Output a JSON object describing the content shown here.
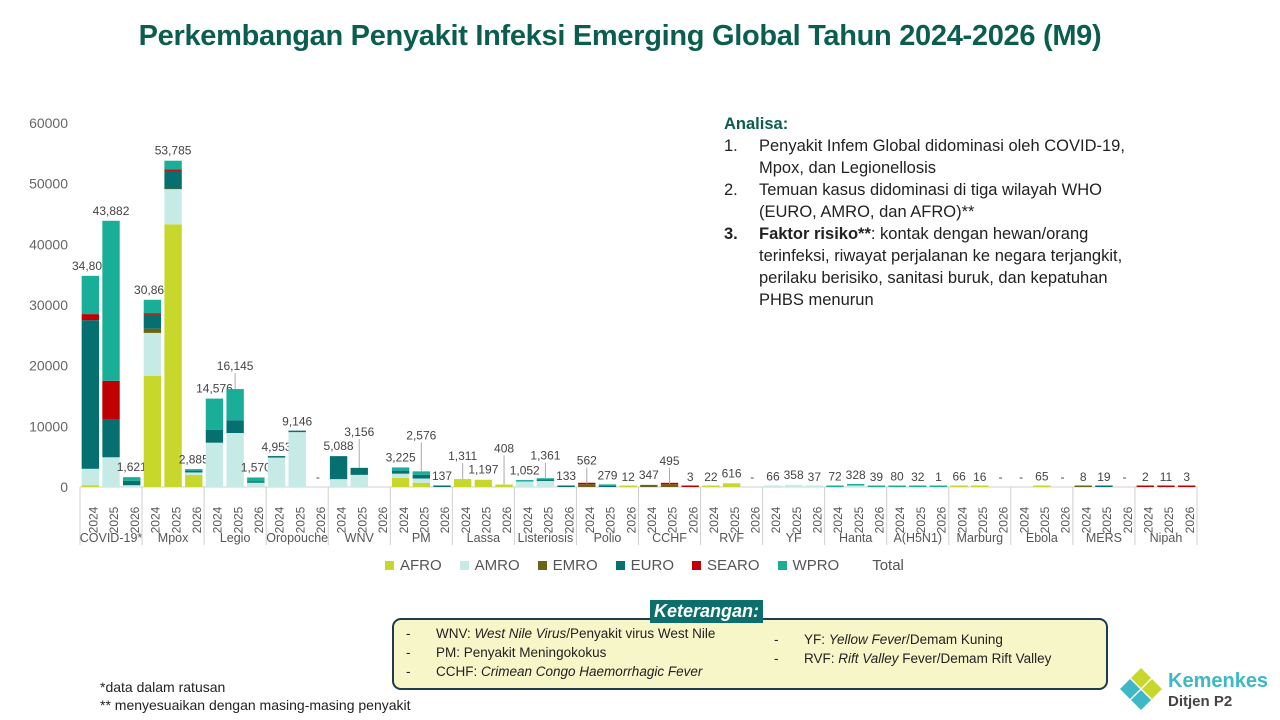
{
  "title": "Perkembangan Penyakit Infeksi Emerging Global Tahun 2024-2026 (M9)",
  "analysis": {
    "heading": "Analisa:",
    "items": [
      {
        "num": "1.",
        "lines": [
          "Penyakit Infem Global didominasi oleh COVID-19,",
          "Mpox, dan Legionellosis"
        ]
      },
      {
        "num": "2.",
        "lines": [
          "Temuan kasus didominasi di tiga wilayah WHO",
          "(EURO, AMRO, dan AFRO)**"
        ]
      },
      {
        "num": "3.",
        "bold": "Faktor risiko**",
        "lines": [
          ": kontak dengan hewan/orang",
          "terinfeksi, riwayat perjalanan ke negara terjangkit,",
          "perilaku berisiko, sanitasi buruk, dan kepatuhan",
          "PHBS menurun"
        ]
      }
    ]
  },
  "keterangan": {
    "title": "Keterangan:",
    "col1": [
      {
        "dash": "-",
        "abbr": "WNV: ",
        "italic": "West Nile Virus",
        "rest": "/Penyakit virus West Nile"
      },
      {
        "dash": "-",
        "abbr": "PM: ",
        "italic": "",
        "rest": "Penyakit Meningokokus"
      },
      {
        "dash": "-",
        "abbr": "CCHF: ",
        "italic": "Crimean Congo Haemorrhagic Fever",
        "rest": ""
      }
    ],
    "col2": [
      {
        "dash": "-",
        "abbr": "YF: ",
        "italic": "Yellow Fever",
        "rest": "/Demam Kuning"
      },
      {
        "dash": "-",
        "abbr": "RVF: ",
        "italic": "Rift Valley",
        "rest": " Fever/Demam Rift Valley"
      }
    ]
  },
  "notes": [
    "*data dalam ratusan",
    "** menyesuaikan dengan masing-masing penyakit"
  ],
  "logo": {
    "name": "Kemenkes",
    "sub": "Ditjen P2"
  },
  "colors": {
    "AFRO": "#c8d72c",
    "AMRO": "#c6eae6",
    "EMRO": "#6b6416",
    "EURO": "#05706f",
    "SEARO": "#c00000",
    "WPRO": "#19ae97",
    "Total": "#ffffff"
  },
  "chart_data": {
    "type": "bar",
    "stacked": true,
    "title": "Perkembangan Penyakit Infeksi Emerging Global Tahun 2024-2026 (M9)",
    "ylim": [
      0,
      60000
    ],
    "yticks": [
      "0",
      "10000",
      "20000",
      "30000",
      "40000",
      "50000",
      "60000"
    ],
    "series_names": [
      "AFRO",
      "AMRO",
      "EMRO",
      "EURO",
      "SEARO",
      "WPRO"
    ],
    "legend": [
      "AFRO",
      "AMRO",
      "EMRO",
      "EURO",
      "SEARO",
      "WPRO",
      "Total"
    ],
    "legend_position": "bottom",
    "years": [
      "2024",
      "2025",
      "2026"
    ],
    "groups": [
      {
        "name": "COVID-19*",
        "bars": [
          {
            "label": "34,806",
            "total": 34806,
            "seg": [
              300,
              2700,
              0,
              24500,
              1000,
              6306
            ]
          },
          {
            "label": "43,882",
            "total": 43882,
            "seg": [
              0,
              4900,
              0,
              6200,
              6400,
              26382
            ]
          },
          {
            "label": "1,621",
            "total": 1621,
            "seg": [
              0,
              300,
              0,
              700,
              0,
              621
            ]
          }
        ]
      },
      {
        "name": "Mpox",
        "bars": [
          {
            "label": "30,863",
            "total": 30863,
            "seg": [
              18300,
              7100,
              700,
              2300,
              200,
              2263
            ]
          },
          {
            "label": "53,785",
            "total": 53785,
            "seg": [
              43300,
              5800,
              100,
              2900,
              200,
              1485
            ]
          },
          {
            "label": "2,885",
            "total": 2885,
            "seg": [
              2000,
              400,
              0,
              300,
              0,
              185
            ]
          }
        ]
      },
      {
        "name": "Legio",
        "bars": [
          {
            "label": "14,576",
            "total": 14576,
            "seg": [
              0,
              7300,
              0,
              2100,
              0,
              5176
            ]
          },
          {
            "label": "16,145",
            "total": 16145,
            "seg": [
              0,
              8900,
              0,
              2100,
              0,
              5145
            ]
          },
          {
            "label": "1,570",
            "total": 1570,
            "seg": [
              0,
              700,
              0,
              200,
              0,
              670
            ]
          }
        ]
      },
      {
        "name": "Oropouche",
        "bars": [
          {
            "label": "4,953",
            "total": 4953,
            "seg": [
              0,
              4853,
              0,
              100,
              0,
              0
            ]
          },
          {
            "label": "9,146",
            "total": 9146,
            "seg": [
              0,
              9046,
              0,
              100,
              0,
              0
            ]
          },
          {
            "label": "-",
            "total": 0,
            "seg": [
              0,
              0,
              0,
              0,
              0,
              0
            ]
          }
        ]
      },
      {
        "name": "WNV",
        "bars": [
          {
            "label": "5,088",
            "total": 5088,
            "seg": [
              0,
              1300,
              0,
              3788,
              0,
              0
            ]
          },
          {
            "label": "3,156",
            "total": 3156,
            "seg": [
              0,
              2000,
              0,
              1156,
              0,
              0
            ]
          },
          {
            "label": "",
            "total": 0,
            "seg": [
              0,
              0,
              0,
              0,
              0,
              0
            ]
          }
        ]
      },
      {
        "name": "PM",
        "bars": [
          {
            "label": "3,225",
            "total": 3225,
            "seg": [
              1500,
              700,
              0,
              500,
              0,
              525
            ]
          },
          {
            "label": "2,576",
            "total": 2576,
            "seg": [
              700,
              700,
              0,
              600,
              0,
              576
            ]
          },
          {
            "label": "137",
            "total": 137,
            "seg": [
              0,
              0,
              0,
              137,
              0,
              0
            ]
          }
        ]
      },
      {
        "name": "Lassa",
        "bars": [
          {
            "label": "1,311",
            "total": 1311,
            "seg": [
              1311,
              0,
              0,
              0,
              0,
              0
            ]
          },
          {
            "label": "1,197",
            "total": 1197,
            "seg": [
              1197,
              0,
              0,
              0,
              0,
              0
            ]
          },
          {
            "label": "408",
            "total": 408,
            "seg": [
              408,
              0,
              0,
              0,
              0,
              0
            ]
          }
        ]
      },
      {
        "name": "Listeriosis",
        "bars": [
          {
            "label": "1,052",
            "total": 1052,
            "seg": [
              0,
              900,
              0,
              0,
              0,
              152
            ]
          },
          {
            "label": "1,361",
            "total": 1361,
            "seg": [
              0,
              1000,
              0,
              200,
              0,
              161
            ]
          },
          {
            "label": "133",
            "total": 133,
            "seg": [
              0,
              0,
              0,
              133,
              0,
              0
            ]
          }
        ]
      },
      {
        "name": "Polio",
        "bars": [
          {
            "label": "562",
            "total": 562,
            "seg": [
              0,
              0,
              450,
              0,
              112,
              0
            ]
          },
          {
            "label": "279",
            "total": 279,
            "seg": [
              0,
              0,
              0,
              179,
              0,
              100
            ]
          },
          {
            "label": "12",
            "total": 12,
            "seg": [
              12,
              0,
              0,
              0,
              0,
              0
            ]
          }
        ]
      },
      {
        "name": "CCHF",
        "bars": [
          {
            "label": "347",
            "total": 347,
            "seg": [
              0,
              0,
              347,
              0,
              0,
              0
            ]
          },
          {
            "label": "495",
            "total": 495,
            "seg": [
              0,
              0,
              445,
              0,
              50,
              0
            ]
          },
          {
            "label": "3",
            "total": 3,
            "seg": [
              0,
              0,
              0,
              0,
              3,
              0
            ]
          }
        ]
      },
      {
        "name": "RVF",
        "bars": [
          {
            "label": "22",
            "total": 22,
            "seg": [
              22,
              0,
              0,
              0,
              0,
              0
            ]
          },
          {
            "label": "616",
            "total": 616,
            "seg": [
              616,
              0,
              0,
              0,
              0,
              0
            ]
          },
          {
            "label": "-",
            "total": 0,
            "seg": [
              0,
              0,
              0,
              0,
              0,
              0
            ]
          }
        ]
      },
      {
        "name": "YF",
        "bars": [
          {
            "label": "66",
            "total": 66,
            "seg": [
              0,
              66,
              0,
              0,
              0,
              0
            ]
          },
          {
            "label": "358",
            "total": 358,
            "seg": [
              0,
              358,
              0,
              0,
              0,
              0
            ]
          },
          {
            "label": "37",
            "total": 37,
            "seg": [
              0,
              37,
              0,
              0,
              0,
              0
            ]
          }
        ]
      },
      {
        "name": "Hanta",
        "bars": [
          {
            "label": "72",
            "total": 72,
            "seg": [
              0,
              0,
              0,
              0,
              0,
              72
            ]
          },
          {
            "label": "328",
            "total": 328,
            "seg": [
              0,
              250,
              0,
              0,
              0,
              78
            ]
          },
          {
            "label": "39",
            "total": 39,
            "seg": [
              0,
              0,
              0,
              0,
              0,
              39
            ]
          }
        ]
      },
      {
        "name": "A(H5N1)",
        "bars": [
          {
            "label": "80",
            "total": 80,
            "seg": [
              0,
              0,
              0,
              0,
              0,
              80
            ]
          },
          {
            "label": "32",
            "total": 32,
            "seg": [
              0,
              0,
              0,
              0,
              0,
              32
            ]
          },
          {
            "label": "1",
            "total": 1,
            "seg": [
              0,
              0,
              0,
              0,
              0,
              1
            ]
          }
        ]
      },
      {
        "name": "Marburg",
        "bars": [
          {
            "label": "66",
            "total": 66,
            "seg": [
              66,
              0,
              0,
              0,
              0,
              0
            ]
          },
          {
            "label": "16",
            "total": 16,
            "seg": [
              16,
              0,
              0,
              0,
              0,
              0
            ]
          },
          {
            "label": "-",
            "total": 0,
            "seg": [
              0,
              0,
              0,
              0,
              0,
              0
            ]
          }
        ]
      },
      {
        "name": "Ebola",
        "bars": [
          {
            "label": "-",
            "total": 0,
            "seg": [
              0,
              0,
              0,
              0,
              0,
              0
            ]
          },
          {
            "label": "65",
            "total": 65,
            "seg": [
              65,
              0,
              0,
              0,
              0,
              0
            ]
          },
          {
            "label": "-",
            "total": 0,
            "seg": [
              0,
              0,
              0,
              0,
              0,
              0
            ]
          }
        ]
      },
      {
        "name": "MERS",
        "bars": [
          {
            "label": "8",
            "total": 8,
            "seg": [
              0,
              0,
              8,
              0,
              0,
              0
            ]
          },
          {
            "label": "19",
            "total": 19,
            "seg": [
              0,
              0,
              0,
              19,
              0,
              0
            ]
          },
          {
            "label": "-",
            "total": 0,
            "seg": [
              0,
              0,
              0,
              0,
              0,
              0
            ]
          }
        ]
      },
      {
        "name": "Nipah",
        "bars": [
          {
            "label": "2",
            "total": 2,
            "seg": [
              0,
              0,
              0,
              0,
              2,
              0
            ]
          },
          {
            "label": "11",
            "total": 11,
            "seg": [
              0,
              0,
              0,
              0,
              11,
              0
            ]
          },
          {
            "label": "3",
            "total": 3,
            "seg": [
              0,
              0,
              0,
              0,
              3,
              0
            ]
          }
        ]
      }
    ]
  }
}
